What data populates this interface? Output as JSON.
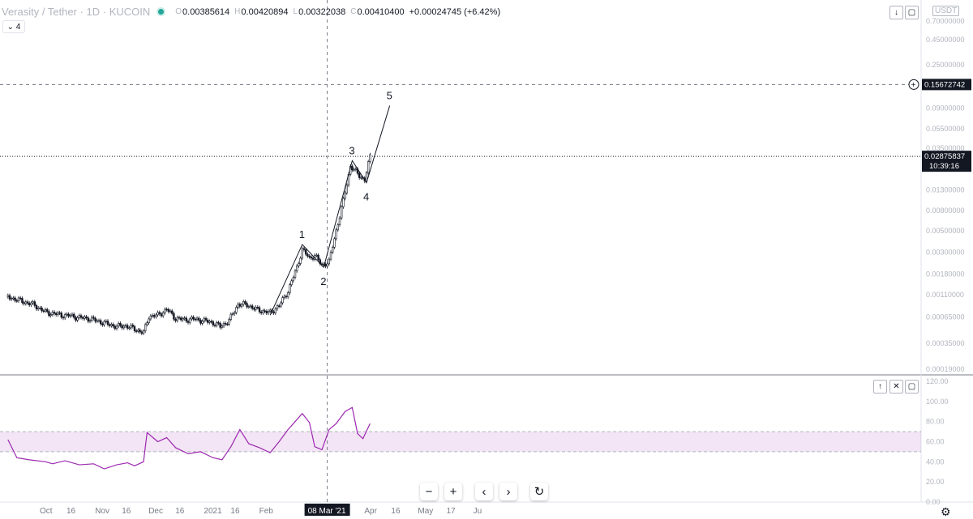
{
  "header": {
    "symbol": "Verasity / Tether · 1D · KUCOIN",
    "open_key": "O",
    "open": "0.00385614",
    "high_key": "H",
    "high": "0.00420894",
    "low_key": "L",
    "low": "0.00322038",
    "close_key": "C",
    "close": "0.00410400",
    "change": "+0.00024745 (+6.42%)",
    "indicator_count": "4",
    "currency": "USDT"
  },
  "chart_data": {
    "type": "candlestick",
    "scale": "log",
    "price_axis_labels": [
      "0.70000000",
      "0.45000000",
      "0.25000000",
      "0.09000000",
      "0.05500000",
      "0.03500000",
      "0.01300000",
      "0.00800000",
      "0.00500000",
      "0.00300000",
      "0.00180000",
      "0.00110000",
      "0.00065000",
      "0.00035000",
      "0.00019000"
    ],
    "price_axis_values": [
      0.7,
      0.45,
      0.25,
      0.09,
      0.055,
      0.035,
      0.013,
      0.008,
      0.005,
      0.003,
      0.0018,
      0.0011,
      0.00065,
      0.00035,
      0.00019
    ],
    "crosshair_price": "0.15672742",
    "crosshair_price_value": 0.1567,
    "last_price": "0.02875837",
    "last_price_value": 0.02876,
    "countdown": "10:39:16",
    "crosshair_date": "08 Mar '21",
    "time_axis_labels": [
      {
        "label": "Oct",
        "date": "2020-10-01"
      },
      {
        "label": "16",
        "date": "2020-10-16"
      },
      {
        "label": "Nov",
        "date": "2020-11-01"
      },
      {
        "label": "16",
        "date": "2020-11-16"
      },
      {
        "label": "Dec",
        "date": "2020-12-01"
      },
      {
        "label": "16",
        "date": "2020-12-16"
      },
      {
        "label": "2021",
        "date": "2021-01-01"
      },
      {
        "label": "16",
        "date": "2021-01-16"
      },
      {
        "label": "Feb",
        "date": "2021-02-01"
      },
      {
        "label": "Mar",
        "date": "2021-03-01"
      },
      {
        "label": "16",
        "date": "2021-03-16"
      },
      {
        "label": "Apr",
        "date": "2021-04-01"
      },
      {
        "label": "16",
        "date": "2021-04-16"
      },
      {
        "label": "May",
        "date": "2021-05-01"
      },
      {
        "label": "17",
        "date": "2021-05-17"
      },
      {
        "label": "Ju",
        "date": "2021-06-01"
      }
    ],
    "price_series": [
      [
        "2020-09-10",
        0.00105
      ],
      [
        "2020-09-15",
        0.00098
      ],
      [
        "2020-09-20",
        0.00092
      ],
      [
        "2020-09-25",
        0.00086
      ],
      [
        "2020-10-01",
        0.00073
      ],
      [
        "2020-10-05",
        0.00071
      ],
      [
        "2020-10-10",
        0.00068
      ],
      [
        "2020-10-15",
        0.00067
      ],
      [
        "2020-10-20",
        0.00064
      ],
      [
        "2020-10-25",
        0.00063
      ],
      [
        "2020-11-01",
        0.00058
      ],
      [
        "2020-11-05",
        0.00055
      ],
      [
        "2020-11-10",
        0.00052
      ],
      [
        "2020-11-15",
        0.00053
      ],
      [
        "2020-11-20",
        0.00049
      ],
      [
        "2020-11-25",
        0.00045
      ],
      [
        "2020-11-28",
        0.00066
      ],
      [
        "2020-12-03",
        0.00068
      ],
      [
        "2020-12-08",
        0.00078
      ],
      [
        "2020-12-13",
        0.00063
      ],
      [
        "2020-12-18",
        0.00061
      ],
      [
        "2020-12-23",
        0.00062
      ],
      [
        "2020-12-28",
        0.0006
      ],
      [
        "2021-01-03",
        0.00057
      ],
      [
        "2021-01-07",
        0.00052
      ],
      [
        "2021-01-12",
        0.0006
      ],
      [
        "2021-01-17",
        0.00088
      ],
      [
        "2021-01-22",
        0.00087
      ],
      [
        "2021-01-27",
        0.00078
      ],
      [
        "2021-02-01",
        0.00074
      ],
      [
        "2021-02-04",
        0.00072
      ],
      [
        "2021-02-09",
        0.00085
      ],
      [
        "2021-02-14",
        0.0012
      ],
      [
        "2021-02-19",
        0.0021
      ],
      [
        "2021-02-22",
        0.0032
      ],
      [
        "2021-02-26",
        0.0026
      ],
      [
        "2021-03-01",
        0.0028
      ],
      [
        "2021-03-05",
        0.0022
      ],
      [
        "2021-03-09",
        0.0024
      ],
      [
        "2021-03-13",
        0.005
      ],
      [
        "2021-03-17",
        0.01
      ],
      [
        "2021-03-21",
        0.023
      ],
      [
        "2021-03-25",
        0.019
      ],
      [
        "2021-03-29",
        0.0165
      ],
      [
        "2021-04-01",
        0.02876
      ]
    ],
    "wave_labels": [
      {
        "label": "1",
        "date": "2021-02-22",
        "value": 0.0036
      },
      {
        "label": "2",
        "date": "2021-03-06",
        "value": 0.0021
      },
      {
        "label": "3",
        "date": "2021-03-22",
        "value": 0.026
      },
      {
        "label": "4",
        "date": "2021-03-30",
        "value": 0.0155
      },
      {
        "label": "5",
        "date": "2021-04-12",
        "value": 0.095
      }
    ],
    "wave_points": [
      [
        "2021-02-04",
        0.00068
      ],
      [
        "2021-02-22",
        0.0036
      ],
      [
        "2021-03-06",
        0.0021
      ],
      [
        "2021-03-22",
        0.026
      ],
      [
        "2021-03-30",
        0.0155
      ],
      [
        "2021-04-12",
        0.095
      ]
    ],
    "rsi": {
      "axis_labels": [
        "120.00",
        "100.00",
        "80.00",
        "60.00",
        "40.00",
        "20.00",
        "0.00"
      ],
      "axis_values": [
        120,
        100,
        80,
        60,
        40,
        20,
        0
      ],
      "band_upper": 70,
      "band_lower": 50,
      "series": [
        [
          "2020-09-10",
          62
        ],
        [
          "2020-09-15",
          44
        ],
        [
          "2020-09-22",
          42
        ],
        [
          "2020-10-01",
          40
        ],
        [
          "2020-10-05",
          38
        ],
        [
          "2020-10-12",
          41
        ],
        [
          "2020-10-20",
          37
        ],
        [
          "2020-10-28",
          38
        ],
        [
          "2020-11-03",
          33
        ],
        [
          "2020-11-10",
          37
        ],
        [
          "2020-11-16",
          39
        ],
        [
          "2020-11-20",
          36
        ],
        [
          "2020-11-25",
          40
        ],
        [
          "2020-11-27",
          69
        ],
        [
          "2020-12-03",
          60
        ],
        [
          "2020-12-08",
          64
        ],
        [
          "2020-12-13",
          54
        ],
        [
          "2020-12-20",
          48
        ],
        [
          "2020-12-27",
          50
        ],
        [
          "2021-01-03",
          44
        ],
        [
          "2021-01-08",
          42
        ],
        [
          "2021-01-13",
          55
        ],
        [
          "2021-01-18",
          72
        ],
        [
          "2021-01-23",
          58
        ],
        [
          "2021-01-29",
          54
        ],
        [
          "2021-02-04",
          49
        ],
        [
          "2021-02-09",
          60
        ],
        [
          "2021-02-14",
          72
        ],
        [
          "2021-02-19",
          82
        ],
        [
          "2021-02-22",
          88
        ],
        [
          "2021-02-26",
          79
        ],
        [
          "2021-03-01",
          55
        ],
        [
          "2021-03-05",
          52
        ],
        [
          "2021-03-09",
          72
        ],
        [
          "2021-03-13",
          78
        ],
        [
          "2021-03-18",
          90
        ],
        [
          "2021-03-22",
          94
        ],
        [
          "2021-03-25",
          68
        ],
        [
          "2021-03-28",
          63
        ],
        [
          "2021-04-01",
          78
        ]
      ]
    }
  },
  "colors": {
    "accent": "#131722",
    "rsi": "#9c27b0",
    "rsi_band": "rgba(156,39,176,0.12)"
  }
}
